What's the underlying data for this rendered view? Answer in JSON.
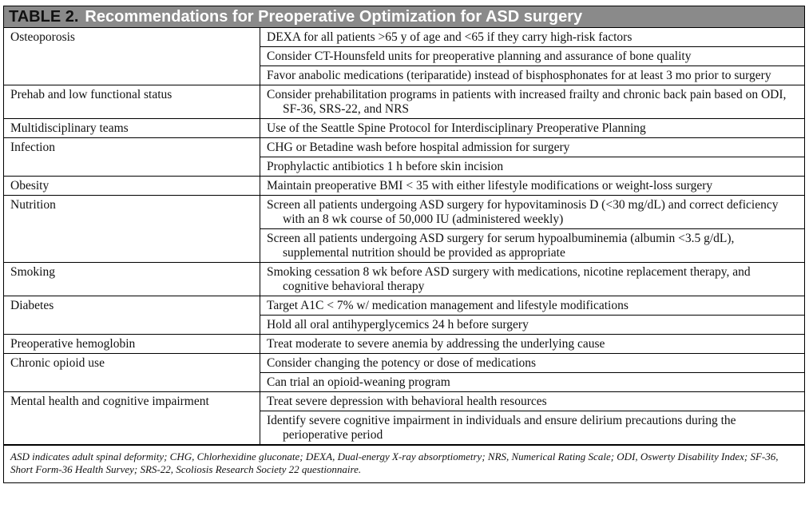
{
  "header": {
    "label": "TABLE 2.",
    "title": "Recommendations for Preoperative Optimization for ASD surgery"
  },
  "table": {
    "rows": [
      {
        "category": "Osteoporosis",
        "recommendations": [
          "DEXA for all patients >65 y of age and <65 if they carry high-risk factors",
          "Consider CT-Hounsfeld units for preoperative planning and assurance of bone quality",
          "Favor anabolic medications (teriparatide) instead of bisphosphonates for at least 3 mo prior to surgery"
        ]
      },
      {
        "category": "Prehab and low functional status",
        "recommendations": [
          "Consider prehabilitation programs in patients with increased frailty and chronic back pain based on ODI, SF-36, SRS-22, and NRS"
        ]
      },
      {
        "category": "Multidisciplinary teams",
        "recommendations": [
          "Use of the Seattle Spine Protocol for Interdisciplinary Preoperative Planning"
        ]
      },
      {
        "category": "Infection",
        "recommendations": [
          "CHG or Betadine wash before hospital admission for surgery",
          "Prophylactic antibiotics 1 h before skin incision"
        ]
      },
      {
        "category": "Obesity",
        "recommendations": [
          "Maintain preoperative BMI < 35 with either lifestyle modifications or weight-loss surgery"
        ]
      },
      {
        "category": "Nutrition",
        "recommendations": [
          "Screen all patients undergoing ASD surgery for hypovitaminosis D (<30 mg/dL) and correct deficiency with an 8 wk course of 50,000 IU (administered weekly)",
          "Screen all patients undergoing ASD surgery for serum hypoalbuminemia (albumin <3.5 g/dL), supplemental nutrition should be provided as appropriate"
        ]
      },
      {
        "category": "Smoking",
        "recommendations": [
          "Smoking cessation 8 wk before ASD surgery with medications, nicotine replacement therapy, and cognitive behavioral therapy"
        ]
      },
      {
        "category": "Diabetes",
        "recommendations": [
          "Target A1C < 7% w/ medication management and lifestyle modifications",
          "Hold all oral antihyperglycemics 24 h before surgery"
        ]
      },
      {
        "category": "Preoperative hemoglobin",
        "recommendations": [
          "Treat moderate to severe anemia by addressing the underlying cause"
        ]
      },
      {
        "category": "Chronic opioid use",
        "recommendations": [
          "Consider changing the potency or dose of medications",
          "Can trial an opioid-weaning program"
        ]
      },
      {
        "category": "Mental health and cognitive impairment",
        "recommendations": [
          "Treat severe depression with behavioral health resources",
          "Identify severe cognitive impairment in individuals and ensure delirium precautions during the perioperative period"
        ]
      }
    ]
  },
  "footnote": "ASD indicates adult spinal deformity; CHG, Chlorhexidine gluconate; DEXA, Dual-energy X-ray absorptiometry; NRS, Numerical Rating Scale; ODI, Oswerty Disability Index; SF-36, Short Form-36 Health Survey; SRS-22, Scoliosis Research Society 22 questionnaire."
}
